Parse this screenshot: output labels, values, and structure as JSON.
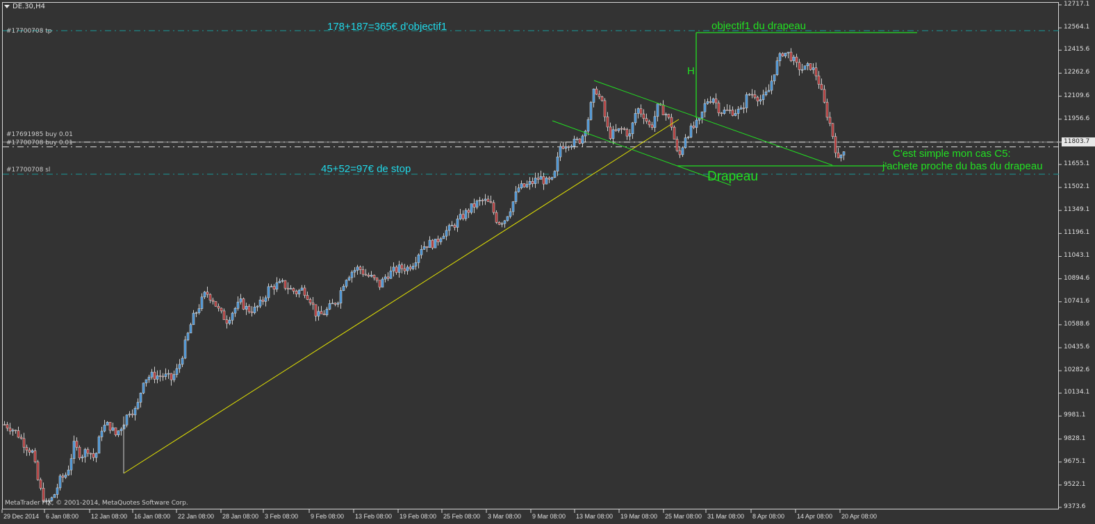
{
  "window": {
    "symbol_label": "DE.30,H4",
    "copyright": "MetaTrader FIX, © 2001-2014, MetaQuotes Software Corp."
  },
  "orders": {
    "tp_label": "#17700708 tp",
    "buy1_label": "#17691985 buy 0.01",
    "buy2_label": "#17700708 buy 0.01",
    "sl_label": "#17700708 sl"
  },
  "annotations": {
    "target_note": "178+187=365€ d'objectif1",
    "stop_note": "45+52=97€ de stop",
    "flag_target": "objectif1 du drapeau",
    "height_marker": "H",
    "flag_label": "Drapeau",
    "comment_line1": "C'est simple mon cas C5:",
    "comment_line2": "j'achete proche du bas du drapeau"
  },
  "colors": {
    "background": "#333333",
    "bull_candle": "#3d8fd6",
    "bear_candle": "#b03030",
    "candle_outline": "#d0d0d0",
    "trendline": "#e6e600",
    "flag_lines": "#22e022",
    "tp_sl_lines": "#1a9a9a",
    "order_lines": "#e0e0e0"
  },
  "chart_data": {
    "type": "candlestick",
    "title": "DE.30,H4",
    "ylim": [
      9373.6,
      12717.1
    ],
    "y_ticks": [
      "12717.1",
      "12564.1",
      "12415.6",
      "12262.6",
      "12109.6",
      "11956.6",
      "11803.7",
      "11655.1",
      "11502.1",
      "11349.1",
      "11196.1",
      "11043.1",
      "10894.6",
      "10741.6",
      "10588.6",
      "10435.6",
      "10282.6",
      "10134.1",
      "9981.1",
      "9828.1",
      "9675.1",
      "9522.1",
      "9373.6"
    ],
    "current_price": "11803.7",
    "x_ticks": [
      "29 Dec 2014",
      "6 Jan 08:00",
      "12 Jan 08:00",
      "16 Jan 08:00",
      "22 Jan 08:00",
      "28 Jan 08:00",
      "3 Feb 08:00",
      "9 Feb 08:00",
      "13 Feb 08:00",
      "19 Feb 08:00",
      "25 Feb 08:00",
      "3 Mar 08:00",
      "9 Mar 08:00",
      "13 Mar 08:00",
      "19 Mar 08:00",
      "25 Mar 08:00",
      "31 Mar 08:00",
      "8 Apr 08:00",
      "14 Apr 08:00",
      "20 Apr 08:00"
    ],
    "approx_close": [
      9925,
      9902,
      9856,
      9786,
      9740,
      9508,
      9393,
      9439,
      9555,
      9601,
      9786,
      9717,
      9763,
      9694,
      9902,
      9925,
      9856,
      9925,
      10018,
      10018,
      10226,
      10249,
      10249,
      10249,
      10226,
      10296,
      10458,
      10620,
      10712,
      10805,
      10759,
      10666,
      10620,
      10689,
      10735,
      10689,
      10689,
      10735,
      10828,
      10851,
      10860,
      10828,
      10805,
      10828,
      10759,
      10643,
      10666,
      10712,
      10759,
      10897,
      10944,
      10967,
      10921,
      10897,
      10851,
      10921,
      10944,
      10967,
      10967,
      11013,
      11106,
      11129,
      11129,
      11198,
      11222,
      11268,
      11314,
      11360,
      11397,
      11416,
      11384,
      11268,
      11291,
      11384,
      11499,
      11509,
      11536,
      11569,
      11536,
      11546,
      11777,
      11800,
      11800,
      11823,
      11962,
      12171,
      12055,
      11847,
      11870,
      11893,
      11847,
      12032,
      11985,
      11893,
      12032,
      12009,
      11916,
      11685,
      11847,
      11893,
      11939,
      12078,
      12101,
      12009,
      12009,
      12009,
      12009,
      12124,
      12124,
      12078,
      12148,
      12310,
      12402,
      12388,
      12310,
      12286,
      12310,
      12240,
      12055,
      11893,
      11675,
      11786
    ],
    "levels": {
      "tp": 12545,
      "buy_1": 11803.7,
      "buy_2": 11772,
      "sl": 11590
    },
    "grid": false
  }
}
